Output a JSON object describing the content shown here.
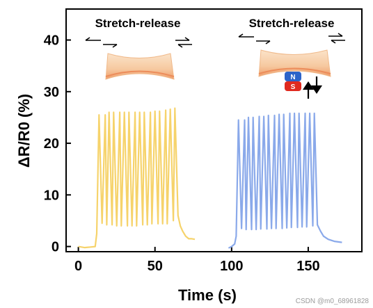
{
  "chart_data": {
    "type": "line",
    "xlabel": "Time (s)",
    "ylabel": "ΔR/R0 (%)",
    "xlim": [
      -8,
      185
    ],
    "ylim": [
      -1,
      46
    ],
    "xticks": [
      0,
      50,
      100,
      150
    ],
    "yticks": [
      0,
      10,
      20,
      30,
      40
    ],
    "grid": false,
    "annotations": [
      "Stretch-release",
      "Stretch-release"
    ],
    "magnet_labels": [
      "N",
      "S"
    ],
    "colors": {
      "series1": "#f6d36b",
      "series2": "#8aa9ea"
    },
    "series": [
      {
        "color": "#f6d36b",
        "x": [
          0,
          4,
          8,
          11,
          12,
          13.5,
          15.5,
          17.5,
          18.5,
          20,
          22,
          23,
          25,
          27,
          28,
          30,
          32,
          33,
          35,
          37,
          38,
          40,
          42,
          43,
          45,
          47,
          48,
          50,
          52,
          53,
          55,
          57,
          58,
          60,
          62,
          63,
          65,
          66.5,
          68,
          70,
          72,
          74,
          76
        ],
        "y": [
          0,
          -0.2,
          -0.1,
          0,
          2.5,
          25.5,
          4.5,
          25.5,
          4.2,
          26,
          4.2,
          26,
          4,
          26,
          4,
          26,
          4,
          26,
          4,
          26,
          4,
          26,
          4.2,
          26,
          4.2,
          26,
          4.4,
          26.2,
          4.4,
          26.2,
          4.4,
          26.4,
          4.4,
          26.6,
          5,
          26.8,
          6,
          4,
          3,
          2,
          1.5,
          1.5,
          1.4
        ]
      },
      {
        "color": "#8aa9ea",
        "x": [
          98,
          100,
          102,
          103,
          104.5,
          106.5,
          108.5,
          109.5,
          111,
          113,
          114,
          116,
          118,
          119,
          121,
          123,
          124,
          126,
          128,
          129,
          131,
          133,
          134,
          136,
          138,
          139,
          141,
          143,
          144,
          146,
          148,
          149,
          151,
          153,
          154,
          156,
          158,
          160,
          163,
          167,
          172
        ],
        "y": [
          -0.3,
          0,
          0.5,
          2,
          24.5,
          3.5,
          24.5,
          3.3,
          25,
          3.3,
          25,
          3.3,
          25.2,
          3.4,
          25.2,
          3.4,
          25.4,
          3.5,
          25.4,
          3.5,
          25.6,
          3.5,
          25.6,
          3.6,
          25.8,
          3.7,
          25.8,
          3.7,
          25.8,
          3.8,
          25.8,
          3.8,
          25.8,
          4,
          25.8,
          4.2,
          3,
          2,
          1.4,
          1,
          0.8
        ]
      }
    ]
  },
  "watermark": "CSDN @m0_68961828"
}
